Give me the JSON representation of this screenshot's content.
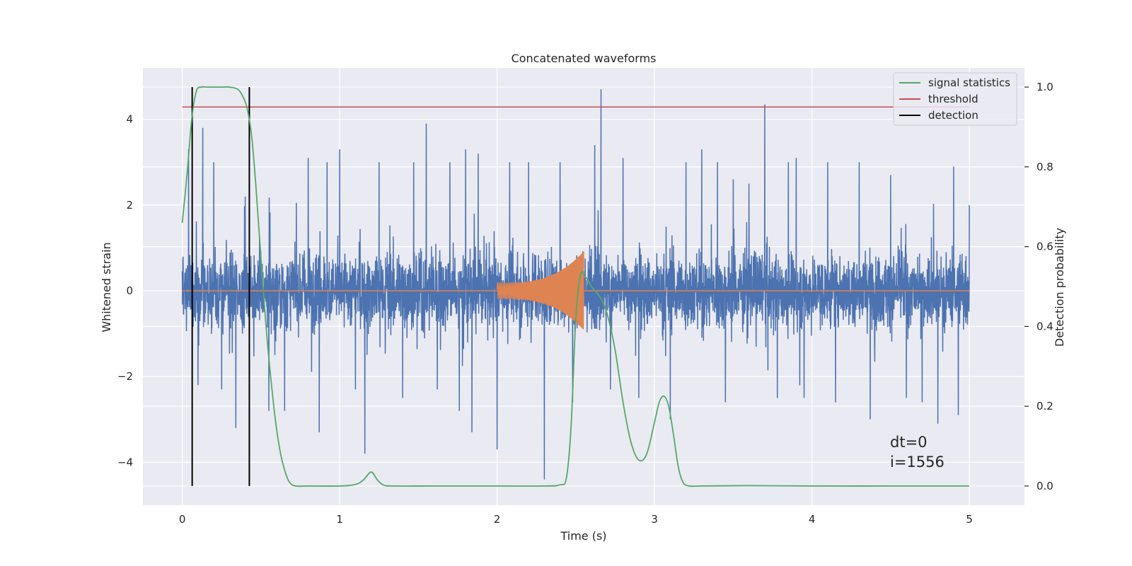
{
  "chart_data": {
    "type": "line",
    "title": "Concatenated waveforms",
    "xlabel": "Time (s)",
    "ylabel": "Whitened strain",
    "y2label": "Detection probability",
    "xlim": [
      -0.25,
      5.35
    ],
    "ylim": [
      -5.0,
      5.2
    ],
    "y2lim": [
      -0.048,
      1.048
    ],
    "xticks": [
      0,
      1,
      2,
      3,
      4,
      5
    ],
    "yticks": [
      -4,
      -2,
      0,
      2,
      4
    ],
    "y2ticks": [
      0.0,
      0.2,
      0.4,
      0.6,
      0.8,
      1.0
    ],
    "xtick_labels": [
      "0",
      "1",
      "2",
      "3",
      "4",
      "5"
    ],
    "ytick_labels": [
      "−4",
      "−2",
      "0",
      "2",
      "4"
    ],
    "y2tick_labels": [
      "0.0",
      "0.2",
      "0.4",
      "0.6",
      "0.8",
      "1.0"
    ],
    "grid": true,
    "legend_position": "top-right",
    "annotations": [
      "dt=0",
      "i=1556"
    ],
    "colors": {
      "strain": "#4c72b0",
      "template": "#dd8452",
      "signal_statistics": "#55a868",
      "threshold": "#c44e52",
      "detection": "#000000",
      "axes_bg": "#eaeaf2",
      "grid": "#ffffff"
    },
    "series": [
      {
        "name": "signal statistics",
        "axis": "right",
        "x": [
          0.0,
          0.03,
          0.06,
          0.09,
          0.12,
          0.16,
          0.2,
          0.25,
          0.3,
          0.35,
          0.38,
          0.41,
          0.44,
          0.47,
          0.5,
          0.53,
          0.56,
          0.59,
          0.62,
          0.65,
          0.68,
          0.72,
          0.8,
          1.0,
          1.1,
          1.15,
          1.2,
          1.24,
          1.28,
          1.35,
          1.6,
          2.0,
          2.3,
          2.4,
          2.44,
          2.47,
          2.5,
          2.53,
          2.56,
          2.6,
          2.62,
          2.66,
          2.7,
          2.75,
          2.8,
          2.85,
          2.9,
          2.95,
          3.0,
          3.03,
          3.06,
          3.09,
          3.12,
          3.15,
          3.18,
          3.22,
          3.3,
          3.6,
          4.0,
          4.5,
          5.0
        ],
        "y": [
          0.66,
          0.78,
          0.92,
          0.99,
          1.0,
          1.0,
          1.0,
          1.0,
          1.0,
          0.995,
          0.98,
          0.95,
          0.88,
          0.74,
          0.57,
          0.41,
          0.28,
          0.17,
          0.09,
          0.04,
          0.01,
          0.0,
          0.0,
          0.0,
          0.004,
          0.015,
          0.035,
          0.015,
          0.002,
          0.0,
          0.0,
          0.0,
          0.0,
          0.003,
          0.02,
          0.15,
          0.42,
          0.53,
          0.525,
          0.5,
          0.49,
          0.47,
          0.43,
          0.34,
          0.21,
          0.11,
          0.065,
          0.08,
          0.16,
          0.21,
          0.225,
          0.2,
          0.13,
          0.05,
          0.01,
          0.0,
          0.0,
          0.001,
          0.0,
          0.0,
          0.0
        ]
      },
      {
        "name": "threshold",
        "axis": "right",
        "x": [
          0.0,
          5.0
        ],
        "y": [
          0.95,
          0.95
        ]
      },
      {
        "name": "detection",
        "axis": "right",
        "x": [
          0.063,
          0.426
        ],
        "y": [
          0.0,
          1.0
        ]
      },
      {
        "axis": "left",
        "x_start": 0.0,
        "x_end": 5.0,
        "y_range": [
          -4.4,
          4.8
        ],
        "spikes": [
          {
            "x": 0.04,
            "y": 3.3
          },
          {
            "x": 0.1,
            "y": -2.2
          },
          {
            "x": 0.13,
            "y": 3.8
          },
          {
            "x": 0.2,
            "y": 3.0
          },
          {
            "x": 0.25,
            "y": -2.3
          },
          {
            "x": 0.34,
            "y": -3.2
          },
          {
            "x": 0.4,
            "y": 2.2
          },
          {
            "x": 0.55,
            "y": -2.8
          },
          {
            "x": 0.65,
            "y": -2.8
          },
          {
            "x": 0.8,
            "y": 3.1
          },
          {
            "x": 0.87,
            "y": -3.3
          },
          {
            "x": 0.92,
            "y": 3.0
          },
          {
            "x": 1.0,
            "y": 3.3
          },
          {
            "x": 1.1,
            "y": -2.3
          },
          {
            "x": 1.16,
            "y": -3.8
          },
          {
            "x": 1.25,
            "y": 3.0
          },
          {
            "x": 1.4,
            "y": -2.5
          },
          {
            "x": 1.47,
            "y": 3.0
          },
          {
            "x": 1.55,
            "y": 3.9
          },
          {
            "x": 1.62,
            "y": -2.3
          },
          {
            "x": 1.7,
            "y": 3.0
          },
          {
            "x": 1.76,
            "y": -2.8
          },
          {
            "x": 1.8,
            "y": 3.3
          },
          {
            "x": 1.84,
            "y": -3.3
          },
          {
            "x": 1.88,
            "y": 3.2
          },
          {
            "x": 2.0,
            "y": -3.7
          },
          {
            "x": 2.08,
            "y": 3.0
          },
          {
            "x": 2.2,
            "y": 3.0
          },
          {
            "x": 2.3,
            "y": -4.4
          },
          {
            "x": 2.4,
            "y": 3.0
          },
          {
            "x": 2.48,
            "y": -2.6
          },
          {
            "x": 2.62,
            "y": 3.4
          },
          {
            "x": 2.66,
            "y": 4.7
          },
          {
            "x": 2.72,
            "y": -2.3
          },
          {
            "x": 2.8,
            "y": 3.1
          },
          {
            "x": 2.9,
            "y": -2.5
          },
          {
            "x": 3.1,
            "y": -3.0
          },
          {
            "x": 3.2,
            "y": 3.0
          },
          {
            "x": 3.3,
            "y": 3.3
          },
          {
            "x": 3.4,
            "y": 3.0
          },
          {
            "x": 3.45,
            "y": -2.6
          },
          {
            "x": 3.5,
            "y": 2.6
          },
          {
            "x": 3.6,
            "y": 2.5
          },
          {
            "x": 3.7,
            "y": 4.35
          },
          {
            "x": 3.78,
            "y": -2.5
          },
          {
            "x": 3.85,
            "y": 3.0
          },
          {
            "x": 3.9,
            "y": 3.1
          },
          {
            "x": 3.95,
            "y": -2.5
          },
          {
            "x": 4.1,
            "y": 3.0
          },
          {
            "x": 4.15,
            "y": -2.6
          },
          {
            "x": 4.3,
            "y": 3.0
          },
          {
            "x": 4.37,
            "y": -3.0
          },
          {
            "x": 4.5,
            "y": 2.7
          },
          {
            "x": 4.6,
            "y": -2.5
          },
          {
            "x": 4.7,
            "y": -2.6
          },
          {
            "x": 4.8,
            "y": -3.1
          },
          {
            "x": 4.9,
            "y": 2.9
          },
          {
            "x": 4.93,
            "y": -2.9
          },
          {
            "x": 5.0,
            "y": 2.0
          }
        ]
      },
      {
        "axis": "left",
        "x_start": 2.0,
        "x_end": 2.55,
        "amplitude_start": 0.18,
        "amplitude_end": 0.92,
        "y_other": 0.0
      }
    ]
  },
  "legend": [
    {
      "label": "signal statistics",
      "color": "#55a868"
    },
    {
      "label": "threshold",
      "color": "#c44e52"
    },
    {
      "label": "detection",
      "color": "#000000"
    }
  ]
}
